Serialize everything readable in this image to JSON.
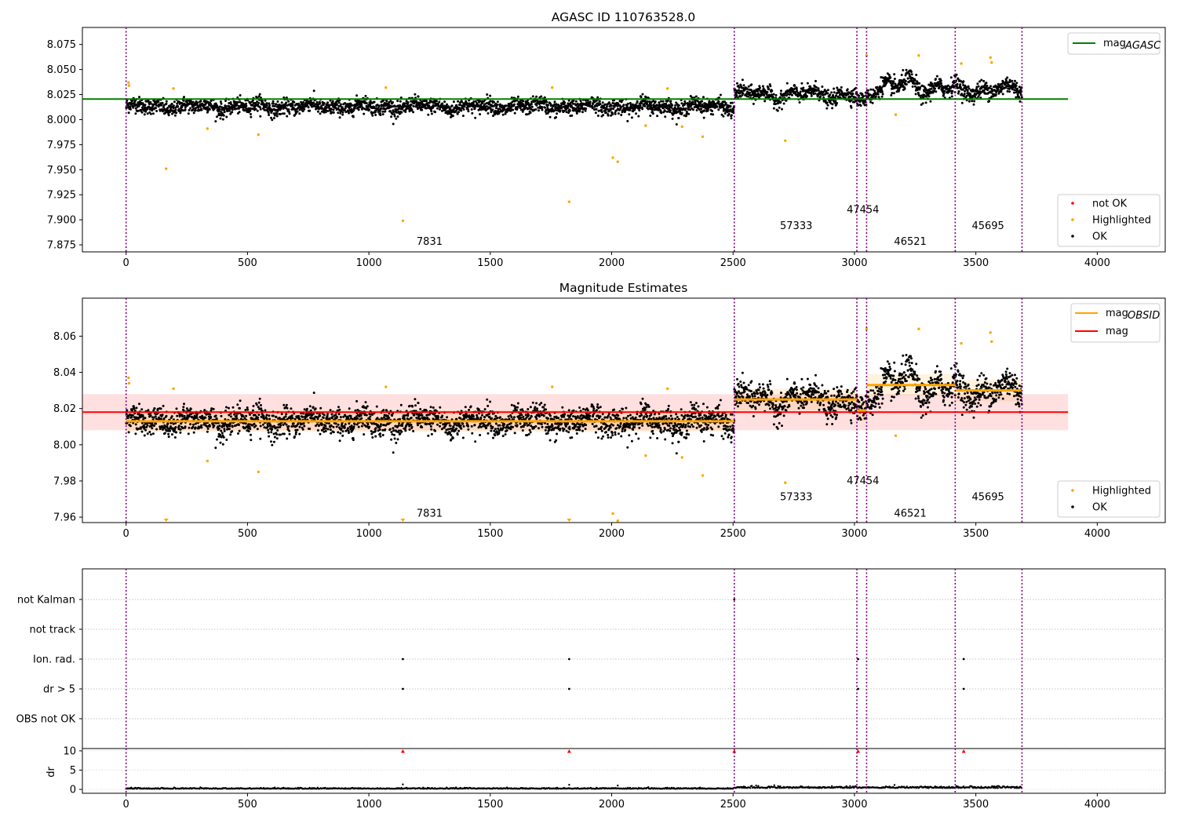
{
  "chart_data": [
    {
      "type": "scatter",
      "title": "AGASC ID 110763528.0",
      "ylim": [
        7.868,
        8.092
      ],
      "xlim": [
        -180,
        4280
      ],
      "xticks": [
        "0",
        "500",
        "1000",
        "1500",
        "2000",
        "2500",
        "3000",
        "3500",
        "4000"
      ],
      "yticks": [
        "7.875",
        "7.900",
        "7.925",
        "7.950",
        "7.975",
        "8.000",
        "8.025",
        "8.050",
        "8.075"
      ],
      "legend_top": [
        {
          "label": "mag",
          "sub": "AGASC",
          "color": "#008000"
        }
      ],
      "legend_bottom": [
        {
          "label": "not OK",
          "color": "#ff0000"
        },
        {
          "label": "Highlighted",
          "color": "#ffa500"
        },
        {
          "label": "OK",
          "color": "#000000"
        }
      ],
      "mag_agasc": 8.0205,
      "obsid_boundaries": [
        0,
        2505,
        3010,
        3050,
        3415,
        3690
      ],
      "obsid_labels": [
        {
          "text": "7831",
          "x": 1250,
          "y": 7.878
        },
        {
          "text": "57333",
          "x": 2760,
          "y": 7.894
        },
        {
          "text": "47454",
          "x": 3035,
          "y": 7.91
        },
        {
          "text": "46521",
          "x": 3230,
          "y": 7.878
        },
        {
          "text": "45695",
          "x": 3550,
          "y": 7.894
        }
      ],
      "obsid_segments": [
        {
          "x0": 0,
          "x1": 2505,
          "center": 8.013,
          "spread": 0.007,
          "bursts": 0.004
        },
        {
          "x0": 2505,
          "x1": 3010,
          "center": 8.025,
          "spread": 0.007,
          "bursts": 0.006
        },
        {
          "x0": 3010,
          "x1": 3050,
          "center": 8.02,
          "spread": 0.006,
          "bursts": 0.0
        },
        {
          "x0": 3050,
          "x1": 3415,
          "center": 8.033,
          "spread": 0.008,
          "bursts": 0.01
        },
        {
          "x0": 3415,
          "x1": 3690,
          "center": 8.03,
          "spread": 0.008,
          "bursts": 0.006
        }
      ],
      "highlighted_points": [
        [
          10,
          8.037
        ],
        [
          12,
          8.034
        ],
        [
          165,
          7.951
        ],
        [
          195,
          8.031
        ],
        [
          335,
          7.991
        ],
        [
          545,
          7.985
        ],
        [
          1070,
          8.032
        ],
        [
          1140,
          7.899
        ],
        [
          1755,
          8.032
        ],
        [
          1825,
          7.918
        ],
        [
          2005,
          7.962
        ],
        [
          2025,
          7.958
        ],
        [
          2140,
          7.994
        ],
        [
          2230,
          8.031
        ],
        [
          2290,
          7.993
        ],
        [
          2375,
          7.983
        ],
        [
          2715,
          7.979
        ],
        [
          3050,
          8.064
        ],
        [
          3170,
          8.005
        ],
        [
          3265,
          8.064
        ],
        [
          3440,
          8.056
        ],
        [
          3560,
          8.062
        ],
        [
          3565,
          8.057
        ]
      ]
    },
    {
      "type": "scatter",
      "title": "Magnitude Estimates",
      "ylim": [
        7.957,
        8.081
      ],
      "xlim": [
        -180,
        4280
      ],
      "xticks": [
        "0",
        "500",
        "1000",
        "1500",
        "2000",
        "2500",
        "3000",
        "3500",
        "4000"
      ],
      "yticks": [
        "7.96",
        "7.98",
        "8.00",
        "8.02",
        "8.04",
        "8.06"
      ],
      "legend_top": [
        {
          "label": "mag",
          "sub": "OBSID",
          "color": "#ffa500"
        },
        {
          "label": "mag",
          "sub": "",
          "color": "#ff0000"
        }
      ],
      "legend_bottom": [
        {
          "label": "Highlighted",
          "color": "#ffa500"
        },
        {
          "label": "OK",
          "color": "#000000"
        }
      ],
      "mag": 8.018,
      "mag_band": [
        8.008,
        8.028
      ],
      "mag_obsid": [
        {
          "x0": 0,
          "x1": 2505,
          "value": 8.013
        },
        {
          "x0": 2505,
          "x1": 3010,
          "value": 8.025
        },
        {
          "x0": 3010,
          "x1": 3050,
          "value": 8.019
        },
        {
          "x0": 3050,
          "x1": 3415,
          "value": 8.033
        },
        {
          "x0": 3415,
          "x1": 3690,
          "value": 8.03
        }
      ],
      "obsid_labels": [
        {
          "text": "7831",
          "x": 1250,
          "y": 7.962
        },
        {
          "text": "57333",
          "x": 2760,
          "y": 7.971
        },
        {
          "text": "47454",
          "x": 3035,
          "y": 7.98
        },
        {
          "text": "46521",
          "x": 3230,
          "y": 7.962
        },
        {
          "text": "45695",
          "x": 3550,
          "y": 7.971
        }
      ],
      "offscale_markers_x": [
        165,
        1140,
        1825
      ]
    },
    {
      "type": "scatter",
      "title": "",
      "xlim": [
        -180,
        4280
      ],
      "flag_rows": [
        "not Kalman",
        "not track",
        "Ion. rad.",
        "dr > 5",
        "OBS not OK"
      ],
      "flag_points": {
        "not Kalman": [
          2505
        ],
        "not track": [],
        "Ion. rad.": [
          1140,
          1825,
          3015,
          3450
        ],
        "dr > 5": [
          1140,
          1825,
          3015,
          3450
        ],
        "OBS not OK": []
      }
    },
    {
      "type": "scatter",
      "title": "",
      "ylabel": "dr",
      "xlim": [
        -180,
        4280
      ],
      "ylim": [
        -1,
        10.6
      ],
      "xticks": [
        "0",
        "500",
        "1000",
        "1500",
        "2000",
        "2500",
        "3000",
        "3500",
        "4000"
      ],
      "yticks": [
        "0",
        "5",
        "10"
      ],
      "red_markers_x": [
        1140,
        1825,
        2505,
        3015,
        3450
      ],
      "spikes": [
        [
          1140,
          1.3
        ],
        [
          1825,
          1.2
        ],
        [
          2025,
          1.0
        ]
      ]
    }
  ]
}
